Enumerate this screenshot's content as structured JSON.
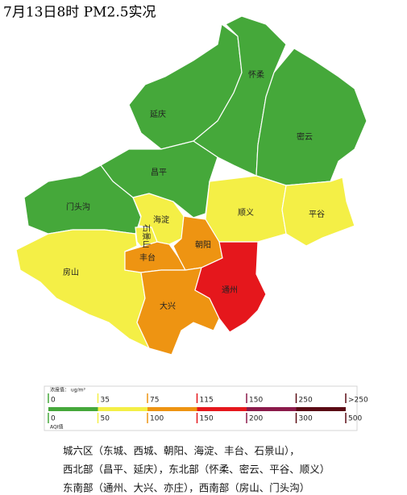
{
  "title": "7月13日8时 PM2.5实况",
  "regions": [
    {
      "name": "延庆",
      "color": "#45a83a"
    },
    {
      "name": "怀柔",
      "color": "#45a83a"
    },
    {
      "name": "密云",
      "color": "#45a83a"
    },
    {
      "name": "昌平",
      "color": "#45a83a"
    },
    {
      "name": "门头沟",
      "color": "#45a83a"
    },
    {
      "name": "房山",
      "color": "#f4ef46"
    },
    {
      "name": "顺义",
      "color": "#f4ef46"
    },
    {
      "name": "平谷",
      "color": "#f4ef46"
    },
    {
      "name": "海淀",
      "color": "#f4ef46"
    },
    {
      "name": "石景山",
      "color": "#f4ef46"
    },
    {
      "name": "丰台",
      "color": "#ee9412"
    },
    {
      "name": "朝阳",
      "color": "#ee9412"
    },
    {
      "name": "大兴",
      "color": "#ee9412"
    },
    {
      "name": "通州",
      "color": "#e5171c"
    }
  ],
  "legend": {
    "concentration_label": "浓度值： ug/m³",
    "aqi_label": "AQI值",
    "colors": [
      "#45a83a",
      "#f4ef46",
      "#ee9412",
      "#e5171c",
      "#8a1a4a",
      "#5a0a14"
    ],
    "concentration_ticks": [
      "0",
      "35",
      "75",
      "115",
      "150",
      "250",
      ">250"
    ],
    "aqi_ticks": [
      "0",
      "50",
      "100",
      "150",
      "200",
      "300",
      "500"
    ]
  },
  "notes": [
    "城六区（东城、西城、朝阳、海淀、丰台、石景山），",
    "西北部（昌平、延庆），东北部（怀柔、密云、平谷、顺义）",
    "东南部（通州、大兴、亦庄），西南部（房山、门头沟）"
  ]
}
